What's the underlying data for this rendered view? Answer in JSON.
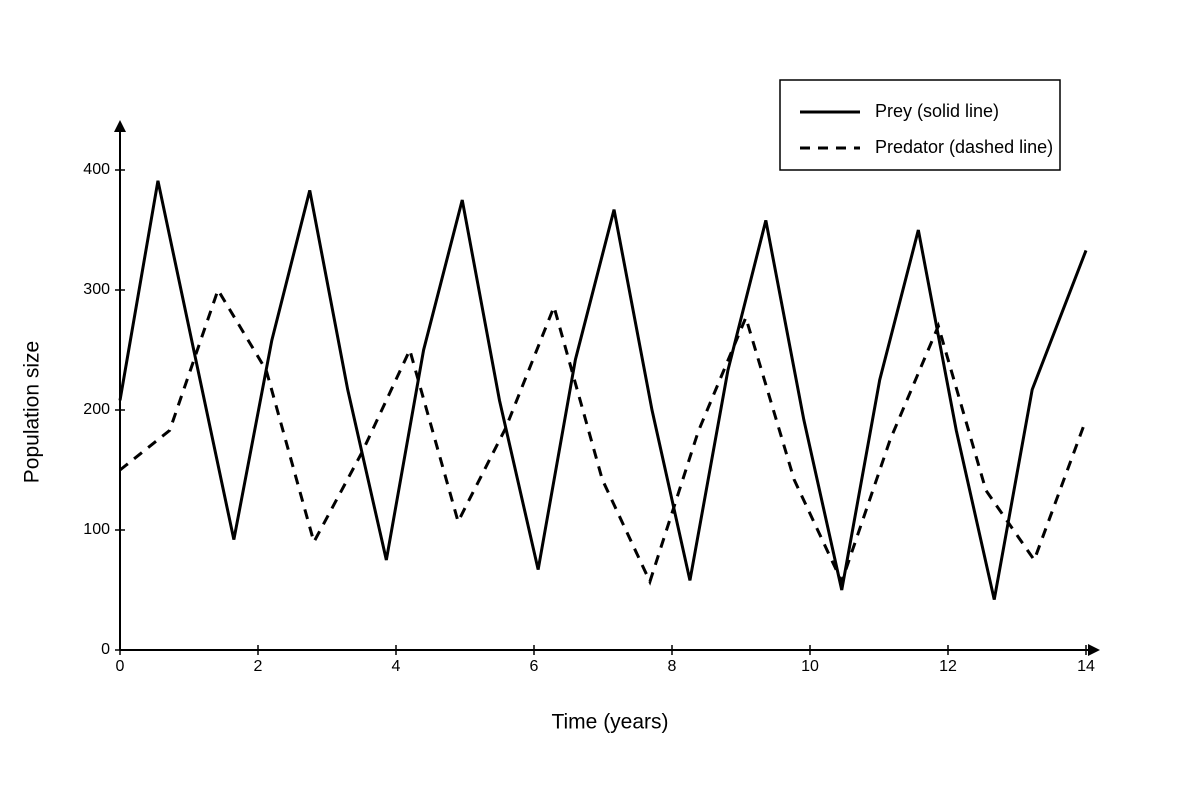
{
  "chart_data": {
    "type": "line",
    "xlabel": "Time (years)",
    "ylabel": "Population size",
    "xlim": [
      0,
      14
    ],
    "ylim": [
      0,
      400
    ],
    "xticks": [
      0,
      2,
      4,
      6,
      8,
      10,
      12,
      14
    ],
    "yticks": [
      0,
      100,
      200,
      300,
      400
    ],
    "grid": false,
    "legend": "upper right",
    "series": [
      {
        "name": "Prey (solid line)",
        "color": "#000000",
        "style": "solid",
        "x": [
          0,
          0.55,
          1.65,
          2.2,
          2.75,
          3.3,
          3.86,
          4.4,
          4.96,
          5.5,
          6.06,
          6.6,
          7.16,
          7.71,
          8.26,
          8.81,
          9.36,
          9.91,
          10.46,
          11.01,
          11.57,
          12.12,
          12.67,
          13.22,
          14
        ],
        "values": [
          208,
          391,
          92,
          258,
          383,
          217,
          75,
          250,
          375,
          208,
          67,
          242,
          367,
          200,
          58,
          233,
          358,
          192,
          50,
          225,
          350,
          183,
          42,
          217,
          333
        ]
      },
      {
        "name": "Predator (dashed line)",
        "color": "#000000",
        "style": "dashed",
        "x": [
          0,
          0.72,
          1.42,
          2.12,
          2.81,
          3.51,
          4.2,
          4.9,
          5.59,
          6.29,
          6.99,
          7.68,
          8.38,
          9.07,
          9.77,
          10.46,
          11.16,
          11.86,
          12.55,
          13.25,
          14
        ],
        "values": [
          150,
          183,
          300,
          233,
          90,
          165,
          250,
          107,
          185,
          286,
          142,
          57,
          182,
          277,
          142,
          57,
          175,
          270,
          133,
          75,
          192
        ]
      }
    ]
  }
}
